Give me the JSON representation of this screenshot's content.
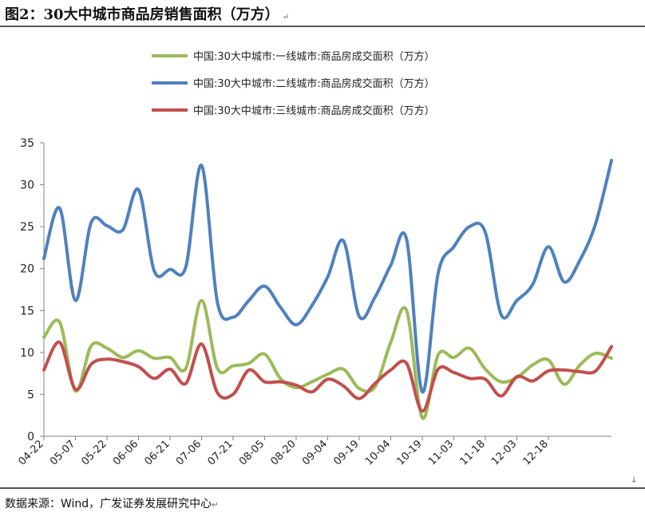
{
  "figure": {
    "title": "图2：30大中城市商品房销售面积（万方）",
    "return_mark": "↵",
    "source": "数据来源：Wind，广发证券发展研究中心",
    "end_mark": "↓"
  },
  "chart_data": {
    "type": "line",
    "title": "",
    "xlabel": "",
    "ylabel": "",
    "ylim": [
      0,
      35
    ],
    "yticks": [
      0,
      5,
      10,
      15,
      20,
      25,
      30,
      35
    ],
    "grid": false,
    "legend_position": "top-center",
    "x_tick_labels": [
      "04-22",
      "05-07",
      "05-22",
      "06-06",
      "06-21",
      "07-06",
      "07-21",
      "08-05",
      "08-20",
      "09-04",
      "09-19",
      "10-04",
      "10-19",
      "11-03",
      "11-18",
      "12-03",
      "12-18"
    ],
    "x_tick_week_index": [
      0,
      2,
      4,
      6,
      8,
      10,
      12,
      14,
      16,
      18,
      20,
      22,
      24,
      26,
      28,
      30,
      32
    ],
    "series": [
      {
        "name": "中国:30大中城市:一线城市:商品房成交面积（万方）",
        "color": "#9BBB59",
        "values": [
          11.8,
          13.6,
          5.4,
          10.8,
          10.5,
          9.4,
          10.2,
          9.3,
          9.4,
          8.1,
          16.2,
          8.1,
          8.4,
          8.7,
          9.8,
          6.9,
          5.8,
          6.5,
          7.4,
          8.0,
          5.7,
          5.9,
          11.2,
          15.0,
          2.2,
          9.7,
          9.4,
          10.5,
          8.0,
          6.5,
          7.0,
          8.5,
          9.1,
          6.2,
          8.5,
          9.9,
          9.3
        ]
      },
      {
        "name": "中国:30大中城市:二线城市:商品房成交面积（万方）",
        "color": "#4F81BD",
        "values": [
          21.2,
          27.2,
          16.2,
          25.5,
          25.1,
          24.6,
          29.4,
          19.7,
          19.9,
          20.2,
          32.3,
          16.0,
          14.2,
          16.2,
          17.9,
          15.4,
          13.3,
          15.6,
          19.0,
          23.3,
          14.3,
          16.6,
          20.4,
          23.5,
          5.3,
          19.4,
          22.6,
          25.0,
          24.3,
          14.5,
          16.2,
          18.1,
          22.6,
          18.4,
          21.0,
          25.4,
          32.9
        ]
      },
      {
        "name": "中国:30大中城市:三线城市:商品房成交面积（万方）",
        "color": "#C0504D",
        "values": [
          7.9,
          11.2,
          5.6,
          8.6,
          9.2,
          8.9,
          8.3,
          6.9,
          8.0,
          6.3,
          11.0,
          5.2,
          5.0,
          7.9,
          6.5,
          6.5,
          6.1,
          5.3,
          6.8,
          6.0,
          4.5,
          6.3,
          7.9,
          8.7,
          3.0,
          8.0,
          7.6,
          6.9,
          6.8,
          4.8,
          7.1,
          6.6,
          7.8,
          7.9,
          7.7,
          7.8,
          10.7
        ]
      }
    ]
  }
}
